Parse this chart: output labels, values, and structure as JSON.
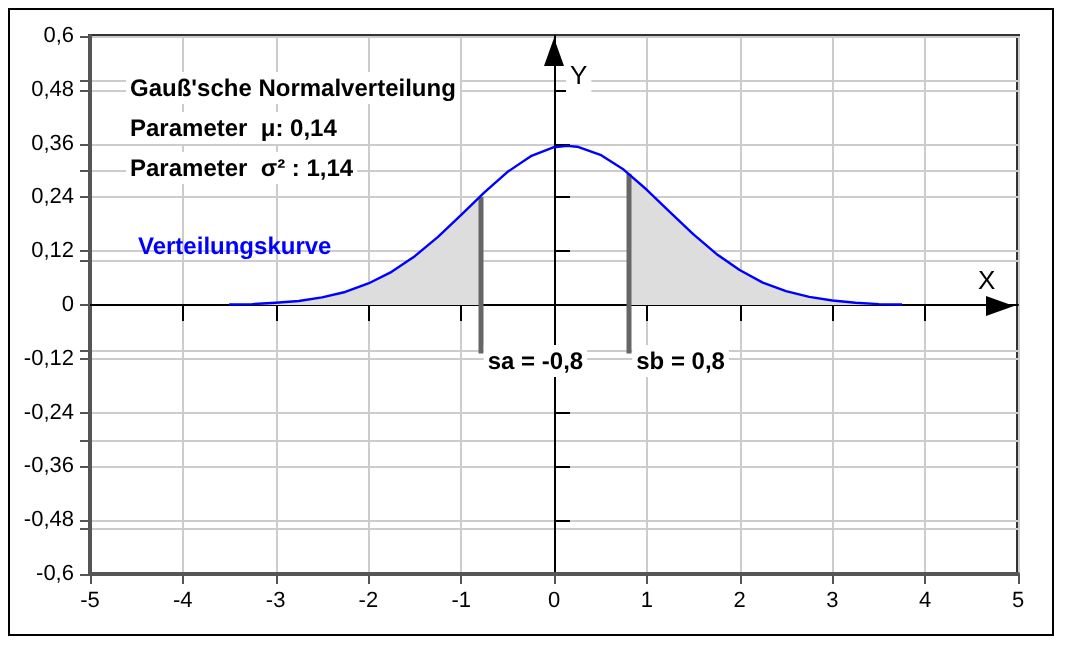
{
  "chart_data": {
    "type": "line",
    "xlabel": "X",
    "ylabel": "Y",
    "annotations": [
      "Gauß'sche Normalverteilung",
      "Parameter  μ: 0,14",
      "Parameter  σ² : 1,14"
    ],
    "series": [
      {
        "type": "area",
        "color": "#dddddd",
        "x": [
          -3.5,
          -3.25,
          -3,
          -2.75,
          -2.5,
          -2.25,
          -2,
          -1.75,
          -1.5,
          -1.25,
          -1,
          -0.8
        ],
        "values": [
          0.001,
          0.002,
          0.005,
          0.009,
          0.017,
          0.029,
          0.048,
          0.074,
          0.109,
          0.152,
          0.201,
          0.241
        ]
      },
      {
        "type": "area",
        "color": "#dddddd",
        "x": [
          0.8,
          1,
          1.25,
          1.5,
          1.75,
          2,
          2.25,
          2.5,
          2.75,
          3,
          3.25,
          3.5,
          3.75
        ],
        "values": [
          0.293,
          0.257,
          0.207,
          0.158,
          0.114,
          0.078,
          0.05,
          0.031,
          0.018,
          0.01,
          0.005,
          0.002,
          0.001
        ]
      },
      {
        "name": "Verteilungskurve",
        "color": "#0000ff",
        "x": [
          -3.5,
          -3.25,
          -3,
          -2.75,
          -2.5,
          -2.25,
          -2,
          -1.75,
          -1.5,
          -1.25,
          -1,
          -0.8,
          -0.75,
          -0.5,
          -0.25,
          0,
          0.14,
          0.25,
          0.5,
          0.75,
          0.8,
          1,
          1.25,
          1.5,
          1.75,
          2,
          2.25,
          2.5,
          2.75,
          3,
          3.25,
          3.5,
          3.75
        ],
        "values": [
          0.001,
          0.002,
          0.005,
          0.009,
          0.017,
          0.029,
          0.048,
          0.074,
          0.109,
          0.152,
          0.201,
          0.241,
          0.251,
          0.297,
          0.332,
          0.352,
          0.355,
          0.353,
          0.335,
          0.302,
          0.293,
          0.257,
          0.207,
          0.158,
          0.114,
          0.078,
          0.05,
          0.031,
          0.018,
          0.01,
          0.005,
          0.002,
          0.001
        ]
      }
    ],
    "ref_lines": [
      {
        "axis": "x",
        "value": -0.8,
        "label": "sa = -0,8",
        "color": "#666666"
      },
      {
        "axis": "x",
        "value": 0.8,
        "label": "sb = 0,8",
        "color": "#666666"
      }
    ],
    "xlim": [
      -5,
      5
    ],
    "xticks": [
      -5,
      -4,
      -3,
      -2,
      -1,
      0,
      1,
      2,
      3,
      4,
      5
    ],
    "ylim": [
      -0.6,
      0.6
    ],
    "yticks": [
      {
        "value": -0.6,
        "label": "-0,6"
      },
      {
        "value": -0.48,
        "label": "-0,48"
      },
      {
        "value": -0.36,
        "label": "-0,36"
      },
      {
        "value": -0.24,
        "label": "-0,24"
      },
      {
        "value": -0.12,
        "label": "-0,12"
      },
      {
        "value": 0,
        "label": "0"
      },
      {
        "value": 0.12,
        "label": "0,12"
      },
      {
        "value": 0.24,
        "label": "0,24"
      },
      {
        "value": 0.36,
        "label": "0,36"
      },
      {
        "value": 0.48,
        "label": "0,48"
      },
      {
        "value": 0.6,
        "label": "0,6"
      }
    ],
    "grid": true,
    "legend": "top left",
    "marker": "none",
    "line_style": "solid"
  }
}
